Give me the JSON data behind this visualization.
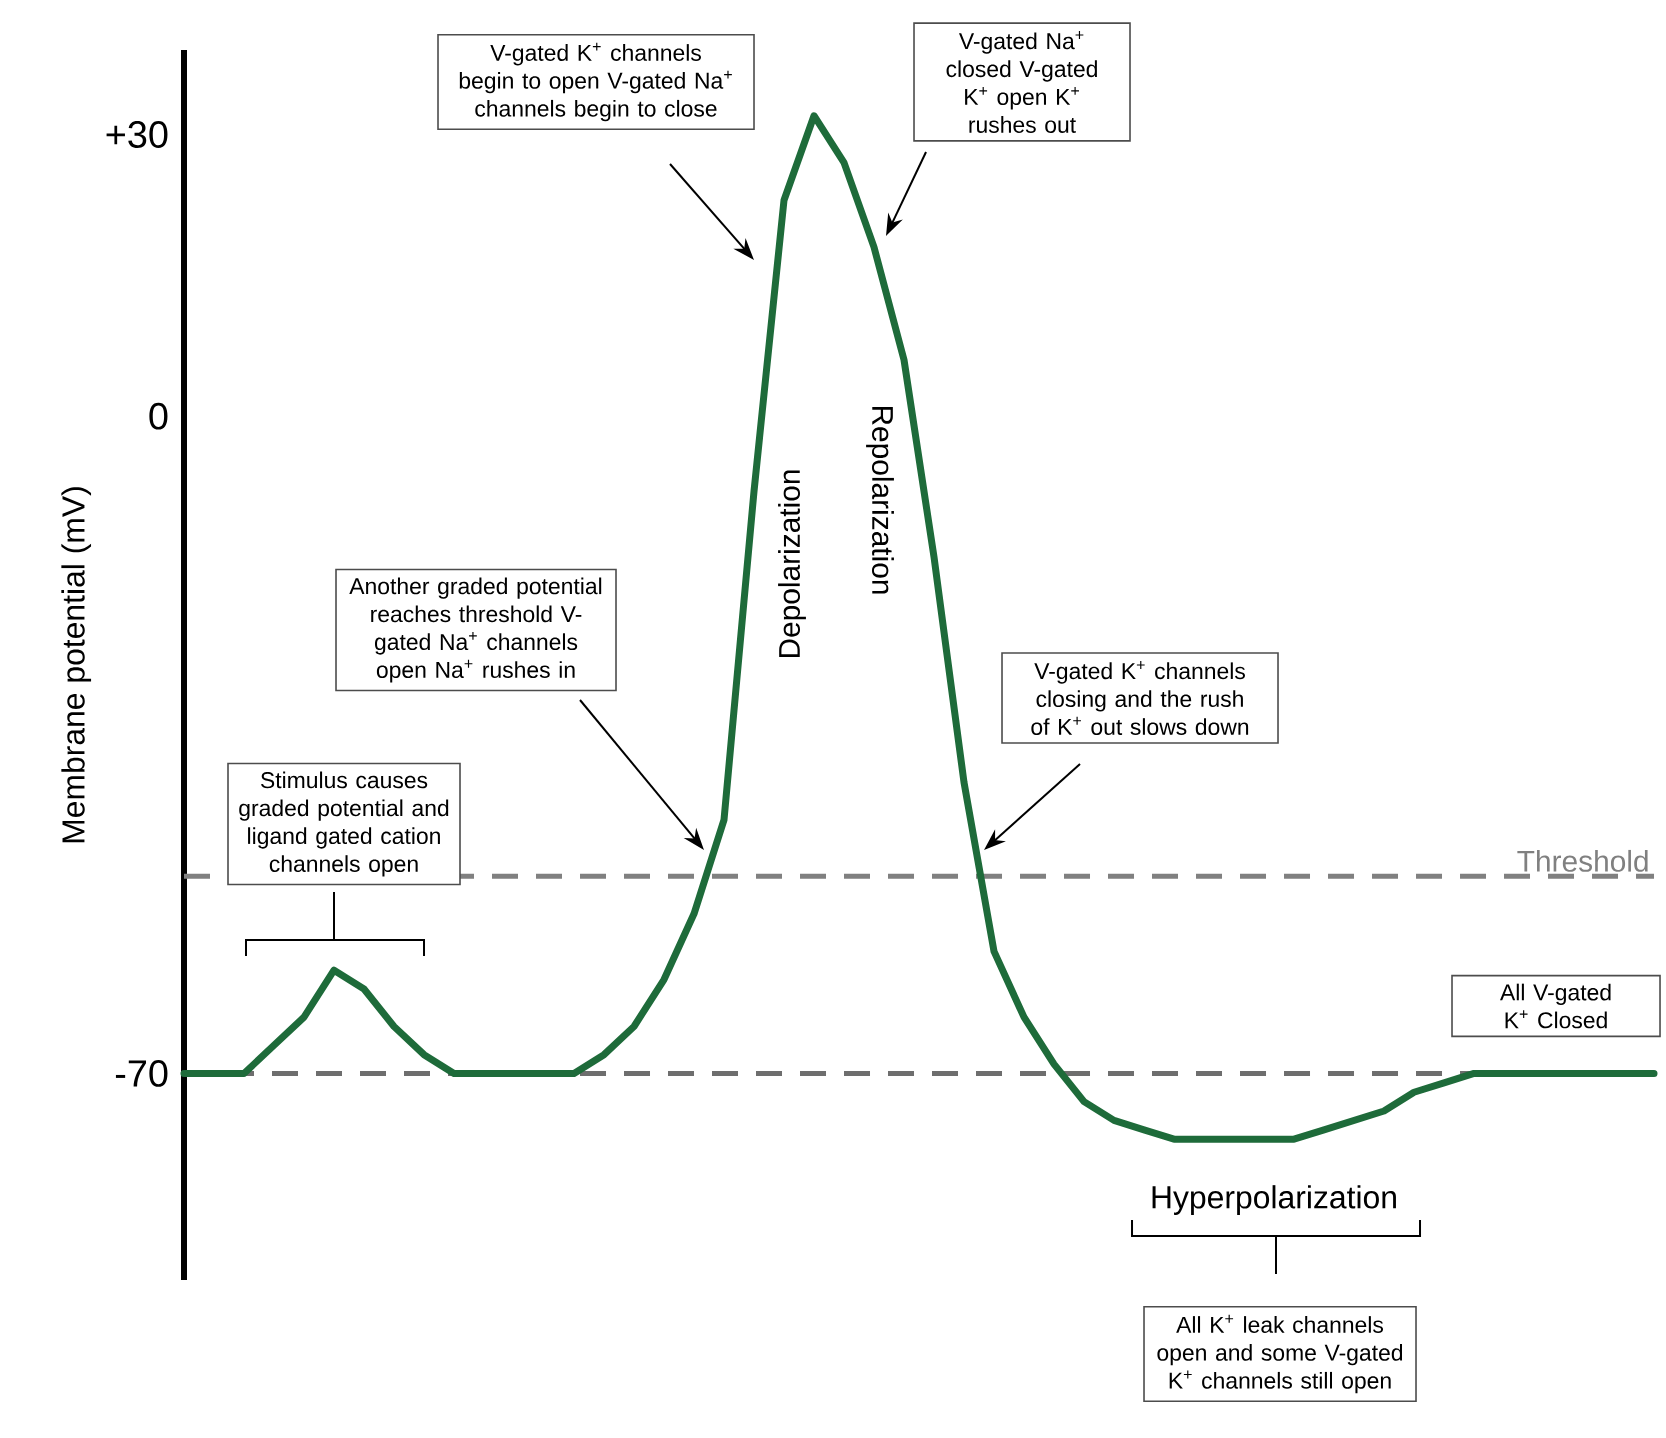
{
  "chart_data": {
    "type": "line",
    "ylabel": "Membrane potential (mV)",
    "categories": [
      null,
      null,
      null,
      null,
      null,
      null,
      null,
      null,
      null,
      null,
      null,
      null,
      null,
      null,
      null,
      null,
      null,
      null,
      null,
      null,
      null,
      null,
      null,
      null,
      null,
      null,
      null,
      null,
      null,
      null,
      null,
      null,
      null,
      null,
      null,
      null,
      null,
      null,
      null,
      null,
      null,
      null,
      null,
      null,
      null,
      null,
      null,
      null,
      null,
      null
    ],
    "values": [
      -70,
      -70,
      -70,
      -67,
      -64,
      -59,
      -61,
      -65,
      -68,
      -70,
      -70,
      -70,
      -70,
      -70,
      -68,
      -65,
      -60,
      -53,
      -43,
      -8,
      23,
      32,
      27,
      18,
      6,
      -15,
      -39,
      -57,
      -64,
      -69,
      -73,
      -75,
      -76,
      -77,
      -77,
      -77,
      -77,
      -77,
      -76,
      -75,
      -74,
      -72,
      -71,
      -70,
      -70,
      -70,
      -70,
      -70,
      -70,
      -70
    ],
    "color": "#1e6b3a",
    "ylim": [
      -92,
      39
    ],
    "yticks": [
      {
        "value": 30,
        "label": "+30"
      },
      0,
      -70
    ],
    "ref_lines": [
      {
        "axis": "y",
        "value": -49,
        "label": "Threshold",
        "color": "#808080",
        "line_style": "dashed"
      },
      {
        "axis": "y",
        "value": -70,
        "color": "#6e6e6e",
        "line_style": "dashed"
      }
    ],
    "annotations": [
      "V-gated K$^{+}$ channels begin to open V-gated Na$^{+}$ channels begin to close",
      "V-gated Na$^{+}$ closed V-gated K$^{+}$ open K$^{+}$ rushes out",
      "Depolarization",
      "Repolarization",
      "Another graded potential reaches threshold V-gated Na$^{+}$ channels open Na$^{+}$ rushes in",
      "V-gated K$^{+}$ channels closing and the rush of K$^{+}$ out slows down",
      "Stimulus causes graded potential and ligand gated cation channels open",
      "Hyperpolarization",
      "All K$^{+}$ leak channels open and some V-gated K$^{+}$ channels still open",
      "All V-gated K$^{+}$ Closed"
    ]
  }
}
